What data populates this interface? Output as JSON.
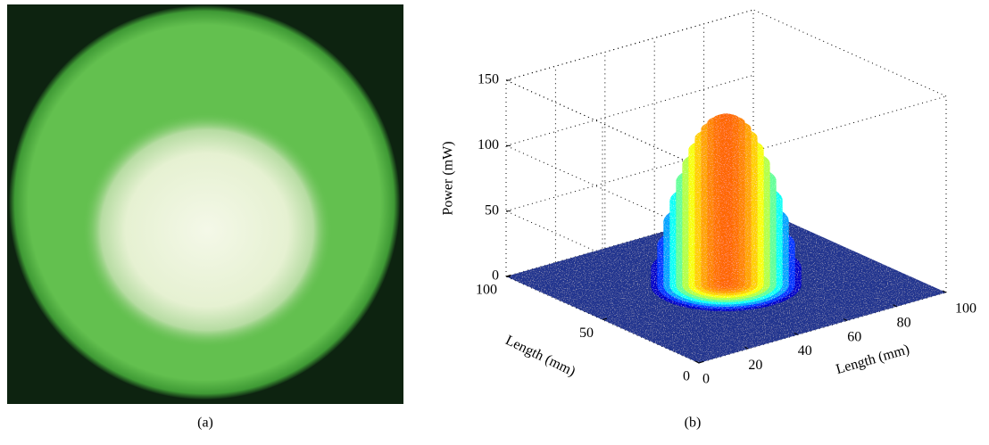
{
  "captions": [
    "(a)",
    "(b)"
  ],
  "chart_data": {
    "type": "surface3d",
    "zlabel": "Power (mW)",
    "xlabel": "Length (mm)",
    "ylabel": "Length (mm)",
    "xlim": [
      0,
      100
    ],
    "ylim": [
      0,
      100
    ],
    "zlim": [
      0,
      150
    ],
    "xticks": [
      0,
      20,
      40,
      60,
      80,
      100
    ],
    "yticks": [
      0,
      50,
      100
    ],
    "zticks": [
      0,
      50,
      100,
      150
    ],
    "grid": true,
    "colormap": "jet",
    "center": [
      50,
      50
    ],
    "profile": {
      "r": [
        26,
        24,
        22,
        20,
        18,
        16,
        14,
        12,
        10,
        8,
        6,
        4,
        2,
        0
      ],
      "values": [
        0,
        12,
        30,
        48,
        64,
        79,
        92,
        103,
        112,
        119,
        124,
        127,
        129,
        130
      ]
    }
  }
}
